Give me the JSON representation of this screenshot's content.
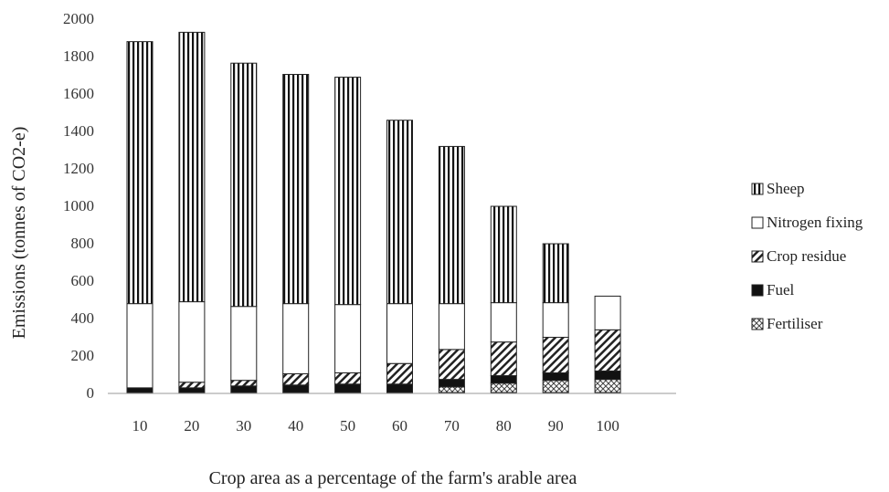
{
  "chart_data": {
    "type": "bar",
    "stacked": true,
    "title": "",
    "xlabel": "Crop area as a percentage of the farm's arable area",
    "ylabel": "Emissions (tonnes of CO2-e)",
    "categories": [
      "10",
      "20",
      "30",
      "40",
      "50",
      "60",
      "70",
      "80",
      "90",
      "100"
    ],
    "ylim": [
      0,
      2000
    ],
    "yticks": [
      0,
      200,
      400,
      600,
      800,
      1000,
      1200,
      1400,
      1600,
      1800,
      2000
    ],
    "grid": false,
    "legend_position": "right",
    "series": [
      {
        "name": "Fertiliser",
        "pattern": "diagonal-crosshatch",
        "values": [
          0,
          0,
          0,
          0,
          0,
          0,
          30,
          50,
          65,
          70
        ]
      },
      {
        "name": "Fuel",
        "pattern": "solid-black",
        "values": [
          25,
          25,
          35,
          40,
          45,
          45,
          40,
          40,
          40,
          45
        ]
      },
      {
        "name": "Crop residue",
        "pattern": "diagonal-hatch",
        "values": [
          0,
          30,
          30,
          60,
          60,
          110,
          160,
          180,
          190,
          220
        ]
      },
      {
        "name": "Nitrogen fixing",
        "pattern": "white",
        "values": [
          450,
          430,
          395,
          375,
          365,
          320,
          245,
          210,
          185,
          180
        ]
      },
      {
        "name": "Sheep",
        "pattern": "vertical-stripes",
        "values": [
          1400,
          1440,
          1300,
          1225,
          1215,
          980,
          840,
          515,
          315,
          0
        ]
      }
    ],
    "legend_order": [
      "Sheep",
      "Nitrogen fixing",
      "Crop residue",
      "Fuel",
      "Fertiliser"
    ]
  }
}
